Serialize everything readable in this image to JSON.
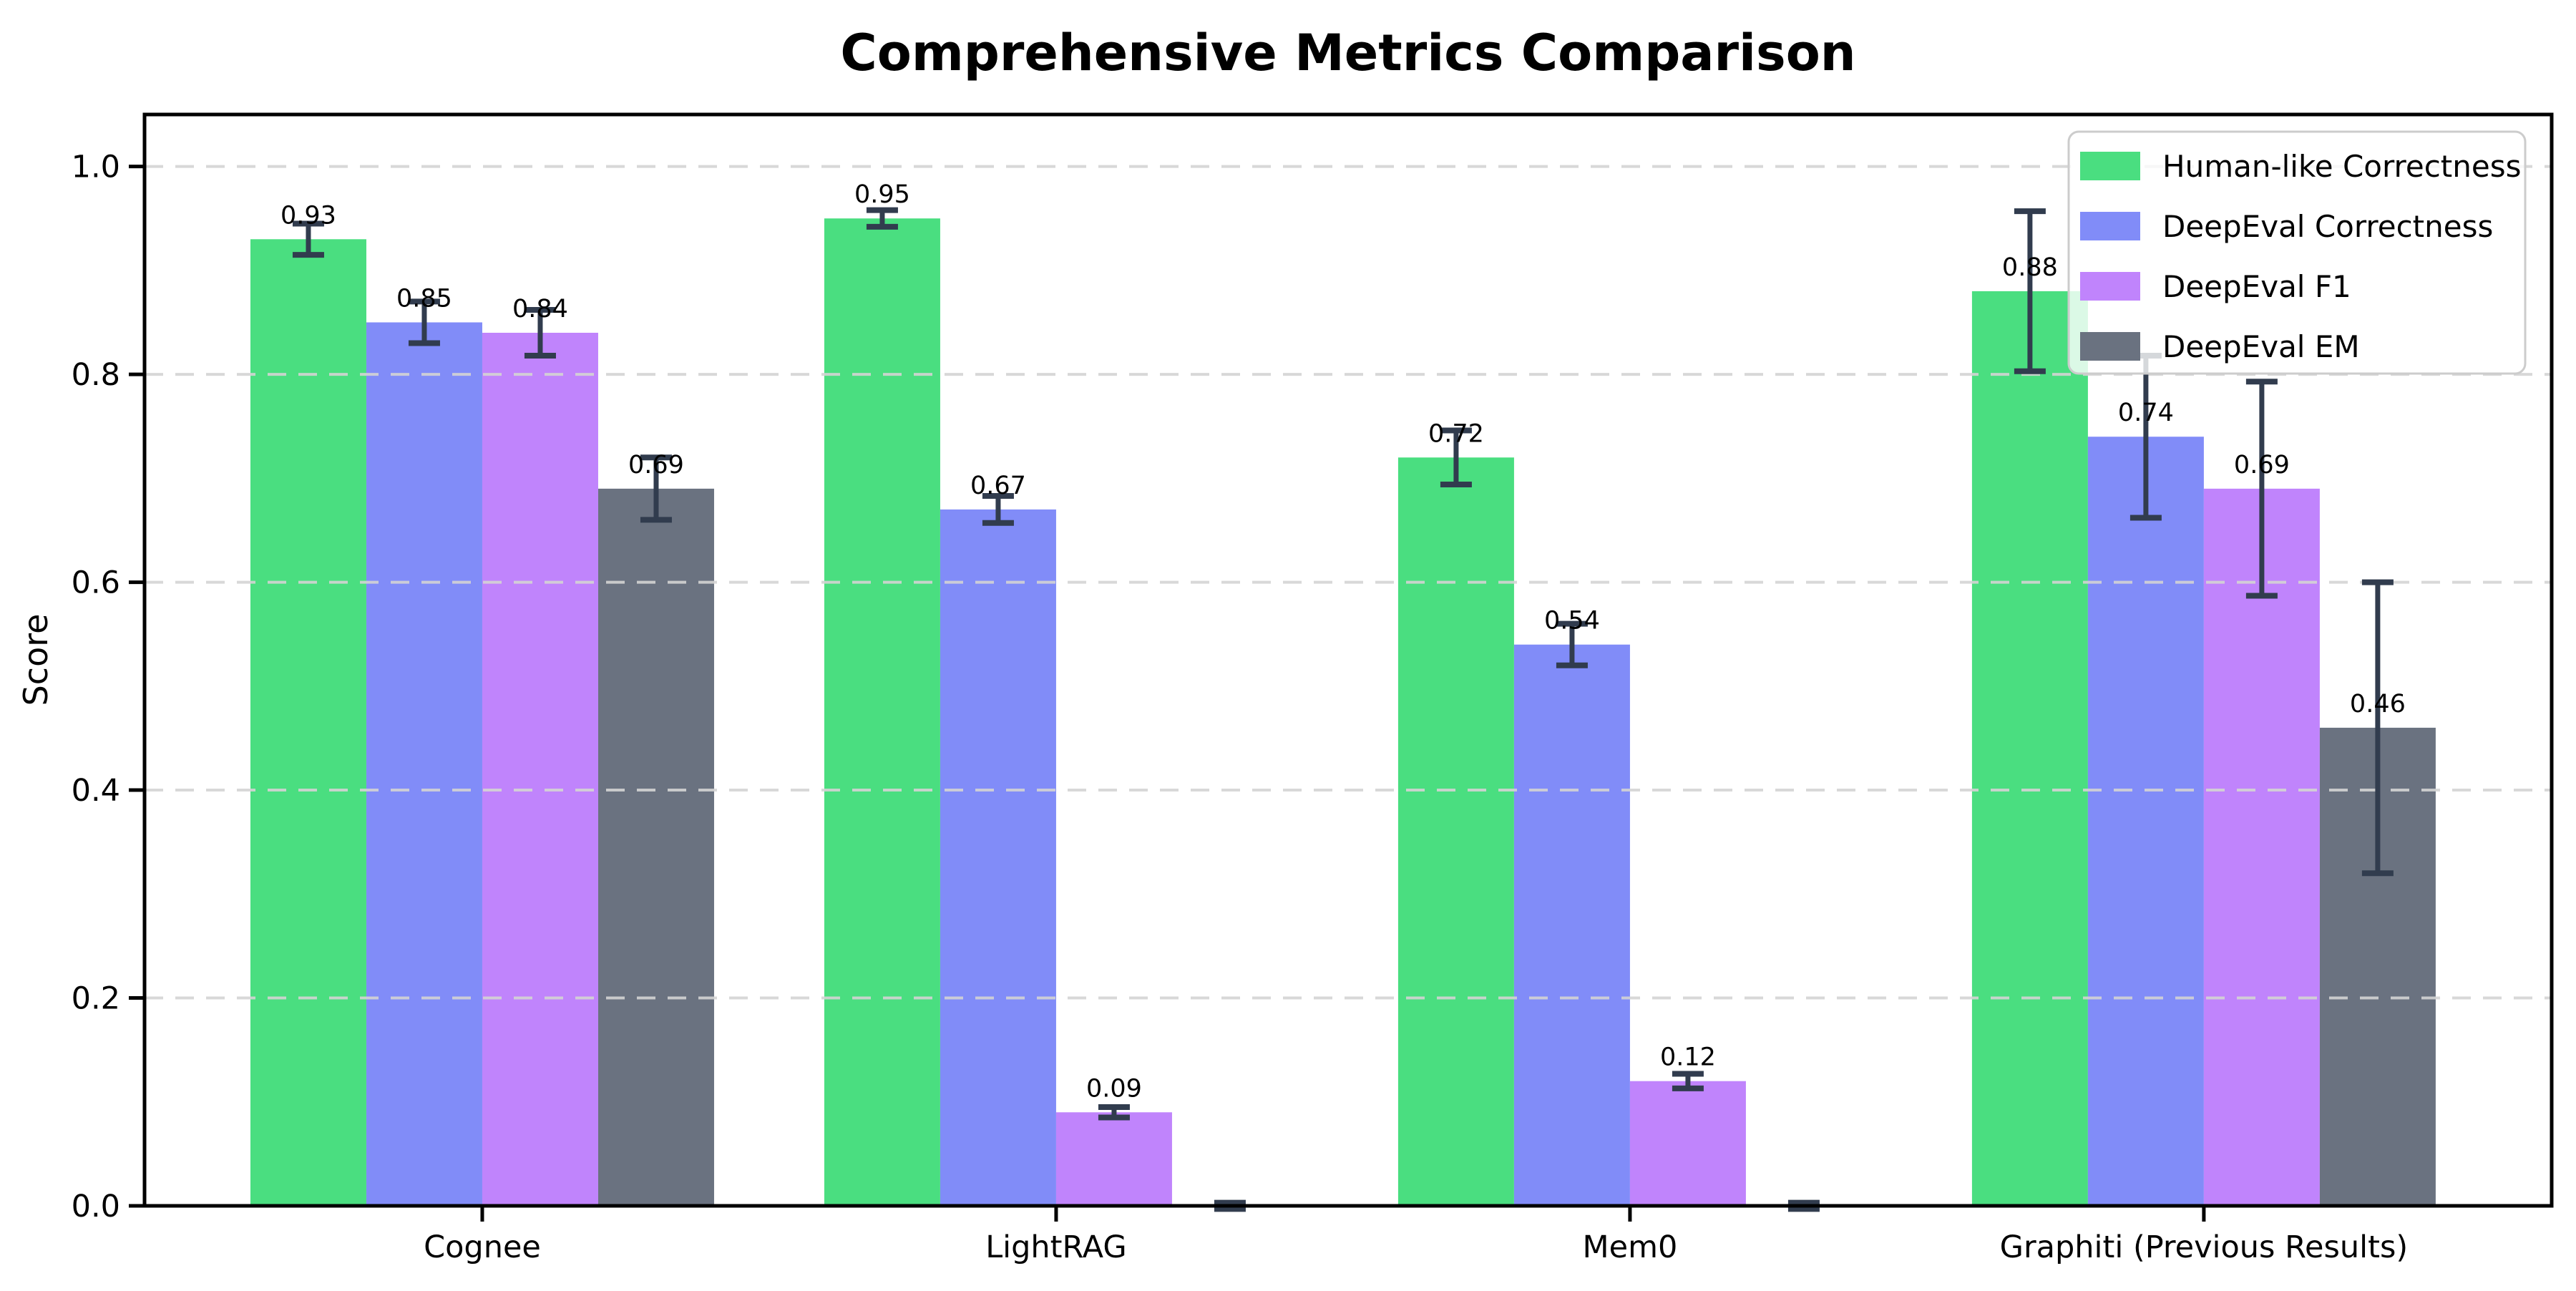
{
  "figure": {
    "title": "Comprehensive Metrics Comparison",
    "ylabel": "Score"
  },
  "chart_data": {
    "type": "bar",
    "title": "Comprehensive Metrics Comparison",
    "xlabel": "",
    "ylabel": "Score",
    "categories": [
      "Cognee",
      "LightRAG",
      "Mem0",
      "Graphiti (Previous Results)"
    ],
    "series": [
      {
        "name": "Human-like Correctness",
        "color": "#4ade80",
        "values": [
          0.93,
          0.95,
          0.72,
          0.88
        ],
        "errors": [
          0.015,
          0.008,
          0.026,
          0.077
        ],
        "labels": [
          "0.93",
          "0.95",
          "0.72",
          "0.88"
        ]
      },
      {
        "name": "DeepEval Correctness",
        "color": "#818cf8",
        "values": [
          0.85,
          0.67,
          0.54,
          0.74
        ],
        "errors": [
          0.02,
          0.013,
          0.02,
          0.078
        ],
        "labels": [
          "0.85",
          "0.67",
          "0.54",
          "0.74"
        ]
      },
      {
        "name": "DeepEval F1",
        "color": "#c084fc",
        "values": [
          0.84,
          0.09,
          0.12,
          0.69
        ],
        "errors": [
          0.022,
          0.005,
          0.007,
          0.103
        ],
        "labels": [
          "0.84",
          "0.09",
          "0.12",
          "0.69"
        ]
      },
      {
        "name": "DeepEval EM",
        "color": "#6a7280",
        "values": [
          0.69,
          0.0,
          0.0,
          0.46
        ],
        "errors": [
          0.03,
          0.003,
          0.003,
          0.14
        ],
        "labels": [
          "0.69",
          null,
          null,
          "0.46"
        ]
      }
    ],
    "yticks": [
      "0.0",
      "0.2",
      "0.4",
      "0.6",
      "0.8",
      "1.0"
    ],
    "ytick_values": [
      0.0,
      0.2,
      0.4,
      0.6,
      0.8,
      1.0
    ],
    "ylim": [
      0,
      1.05
    ],
    "grid": "horizontal-dashed",
    "grid_color": "#d4d4d4",
    "error_bar_color": "#313c4e",
    "spine_color": "#000000",
    "legend_position": "upper-right",
    "legend_border_color": "#cccccc"
  }
}
